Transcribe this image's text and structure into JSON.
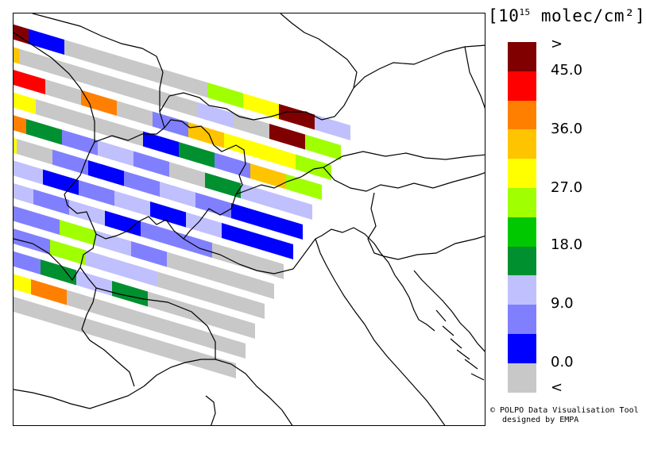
{
  "legend": {
    "unit_prefix": "[10",
    "unit_exp": "15",
    "unit_suffix": " molec/cm²]",
    "tick_labels": [
      ">",
      "45.0",
      "36.0",
      "27.0",
      "18.0",
      "9.0",
      "0.0",
      "<"
    ],
    "bins": [
      {
        "name": "above-max",
        "color": "#800000"
      },
      {
        "name": "40.5-45",
        "color": "#ff0000"
      },
      {
        "name": "36-40.5",
        "color": "#ff8000"
      },
      {
        "name": "31.5-36",
        "color": "#ffc400"
      },
      {
        "name": "27-31.5",
        "color": "#ffff00"
      },
      {
        "name": "22.5-27",
        "color": "#a0ff00"
      },
      {
        "name": "18-22.5",
        "color": "#00c800"
      },
      {
        "name": "13.5-18",
        "color": "#009030"
      },
      {
        "name": "9-13.5",
        "color": "#c0c0ff"
      },
      {
        "name": "4.5-9",
        "color": "#8080ff"
      },
      {
        "name": "0-4.5",
        "color": "#0000ff"
      },
      {
        "name": "below-min",
        "color": "#c8c8c8"
      }
    ]
  },
  "credit": {
    "line1": "© POLPO Data Visualisation Tool",
    "line2": "designed by EMPA"
  },
  "map": {
    "background": "#ffffff",
    "border_color": "#000000",
    "pixel_rows": [
      [
        "above-max",
        "0-4.5",
        "below-min",
        "below-min",
        "below-min",
        "below-min",
        "22.5-27",
        "27-31.5",
        "above-max",
        "9-13.5"
      ],
      [
        "31.5-36",
        "below-min",
        "below-min",
        "below-min",
        "below-min",
        "below-min",
        "9-13.5",
        "below-min",
        "above-max",
        "22.5-27"
      ],
      [
        "above-max",
        "40.5-45",
        "below-min",
        "36-40.5",
        "below-min",
        "4.5-9",
        "31.5-36",
        "27-31.5",
        "27-31.5",
        "22.5-27"
      ],
      [
        "31.5-36",
        "27-31.5",
        "below-min",
        "below-min",
        "below-min",
        "0-4.5",
        "13.5-18",
        "4.5-9",
        "31.5-36",
        "22.5-27"
      ],
      [
        "27-31.5",
        "36-40.5",
        "13.5-18",
        "4.5-9",
        "9-13.5",
        "4.5-9",
        "below-min",
        "13.5-18",
        "9-13.5",
        "9-13.5"
      ],
      [
        "27-31.5",
        "27-31.5",
        "below-min",
        "4.5-9",
        "0-4.5",
        "4.5-9",
        "9-13.5",
        "4.5-9",
        "0-4.5",
        "0-4.5"
      ],
      [
        "22.5-27",
        "27-31.5",
        "9-13.5",
        "0-4.5",
        "4.5-9",
        "9-13.5",
        "0-4.5",
        "9-13.5",
        "0-4.5",
        "0-4.5"
      ],
      [
        "22.5-27",
        "31.5-36",
        "9-13.5",
        "4.5-9",
        "9-13.5",
        "0-4.5",
        "4.5-9",
        "4.5-9",
        "below-min",
        "below-min"
      ],
      [
        "18-22.5",
        "27-31.5",
        "4.5-9",
        "4.5-9",
        "22.5-27",
        "9-13.5",
        "4.5-9",
        "below-min",
        "below-min",
        "below-min"
      ],
      [
        "18-22.5",
        "27-31.5",
        "4.5-9",
        "4.5-9",
        "22.5-27",
        "9-13.5",
        "9-13.5",
        "below-min",
        "below-min",
        "below-min"
      ],
      [
        "27-31.5",
        "9-13.5",
        "below-min",
        "4.5-9",
        "13.5-18",
        "9-13.5",
        "13.5-18",
        "below-min",
        "below-min",
        "below-min"
      ],
      [
        "below-min",
        "4.5-9",
        "13.5-18",
        "27-31.5",
        "36-40.5",
        "below-min",
        "below-min",
        "below-min",
        "below-min",
        "below-min"
      ],
      [
        "13.5-18",
        "22.5-27",
        "31.5-36",
        "below-min",
        "below-min",
        "below-min",
        "below-min",
        "below-min",
        "below-min",
        "below-min"
      ]
    ]
  }
}
